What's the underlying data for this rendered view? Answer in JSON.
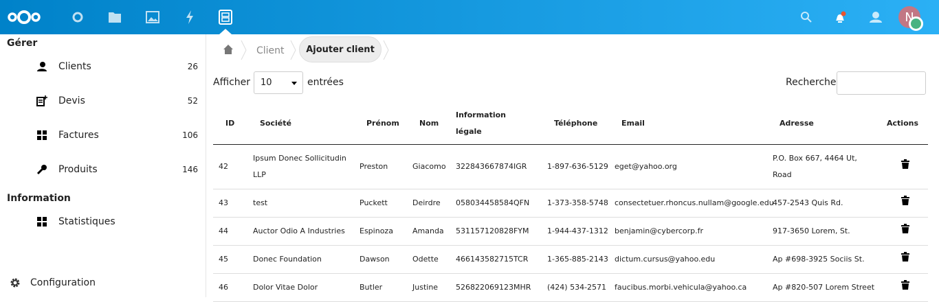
{
  "header": {
    "apps": [
      "dashboard",
      "files",
      "photos",
      "activity",
      "invoice-app"
    ],
    "avatar_initial": "N",
    "colors": {
      "bar": "#0082c9",
      "avatar": "#c27784",
      "status": "#49b382",
      "notification": "#e9542f"
    }
  },
  "sidebar": {
    "section_manage": "Gérer",
    "items": [
      {
        "label": "Clients",
        "count": "26",
        "icon": "users-icon"
      },
      {
        "label": "Devis",
        "count": "52",
        "icon": "quote-icon"
      },
      {
        "label": "Factures",
        "count": "106",
        "icon": "grid-icon"
      },
      {
        "label": "Produits",
        "count": "146",
        "icon": "wrench-icon"
      }
    ],
    "section_info": "Information",
    "info_items": [
      {
        "label": "Statistiques",
        "icon": "grid-icon"
      }
    ],
    "settings": "Configuration"
  },
  "breadcrumb": {
    "items": [
      "Client"
    ],
    "action": "Ajouter client"
  },
  "controls": {
    "show_prefix": "Afficher",
    "page_size": "10",
    "show_suffix": "entrées",
    "search_label": "Recherche",
    "search_value": ""
  },
  "table": {
    "headers": [
      "ID",
      "Société",
      "Prénom",
      "Nom",
      "Information légale",
      "Téléphone",
      "Email",
      "Adresse",
      "Actions"
    ],
    "rows": [
      [
        "42",
        "Ipsum Donec Sollicitudin LLP",
        "Preston",
        "Giacomo",
        "322843667874IGR",
        "1-897-636-5129",
        "eget@yahoo.org",
        "P.O. Box 667, 4464 Ut, Road"
      ],
      [
        "43",
        "test",
        "Puckett",
        "Deirdre",
        "058034458584QFN",
        "1-373-358-5748",
        "consectetuer.rhoncus.nullam@google.edu",
        "457-2543 Quis Rd."
      ],
      [
        "44",
        "Auctor Odio A Industries",
        "Espinoza",
        "Amanda",
        "531157120828FYM",
        "1-944-437-1312",
        "benjamin@cybercorp.fr",
        "917-3650 Lorem, St."
      ],
      [
        "45",
        "Donec Foundation",
        "Dawson",
        "Odette",
        "466143582715TCR",
        "1-365-885-2143",
        "dictum.cursus@yahoo.edu",
        "Ap #698-3925 Sociis St."
      ],
      [
        "46",
        "Dolor Vitae Dolor",
        "Butler",
        "Justine",
        "526822069123MHR",
        "(424) 534-2571",
        "faucibus.morbi.vehicula@yahoo.ca",
        "Ap #820-507 Lorem Street"
      ]
    ]
  }
}
